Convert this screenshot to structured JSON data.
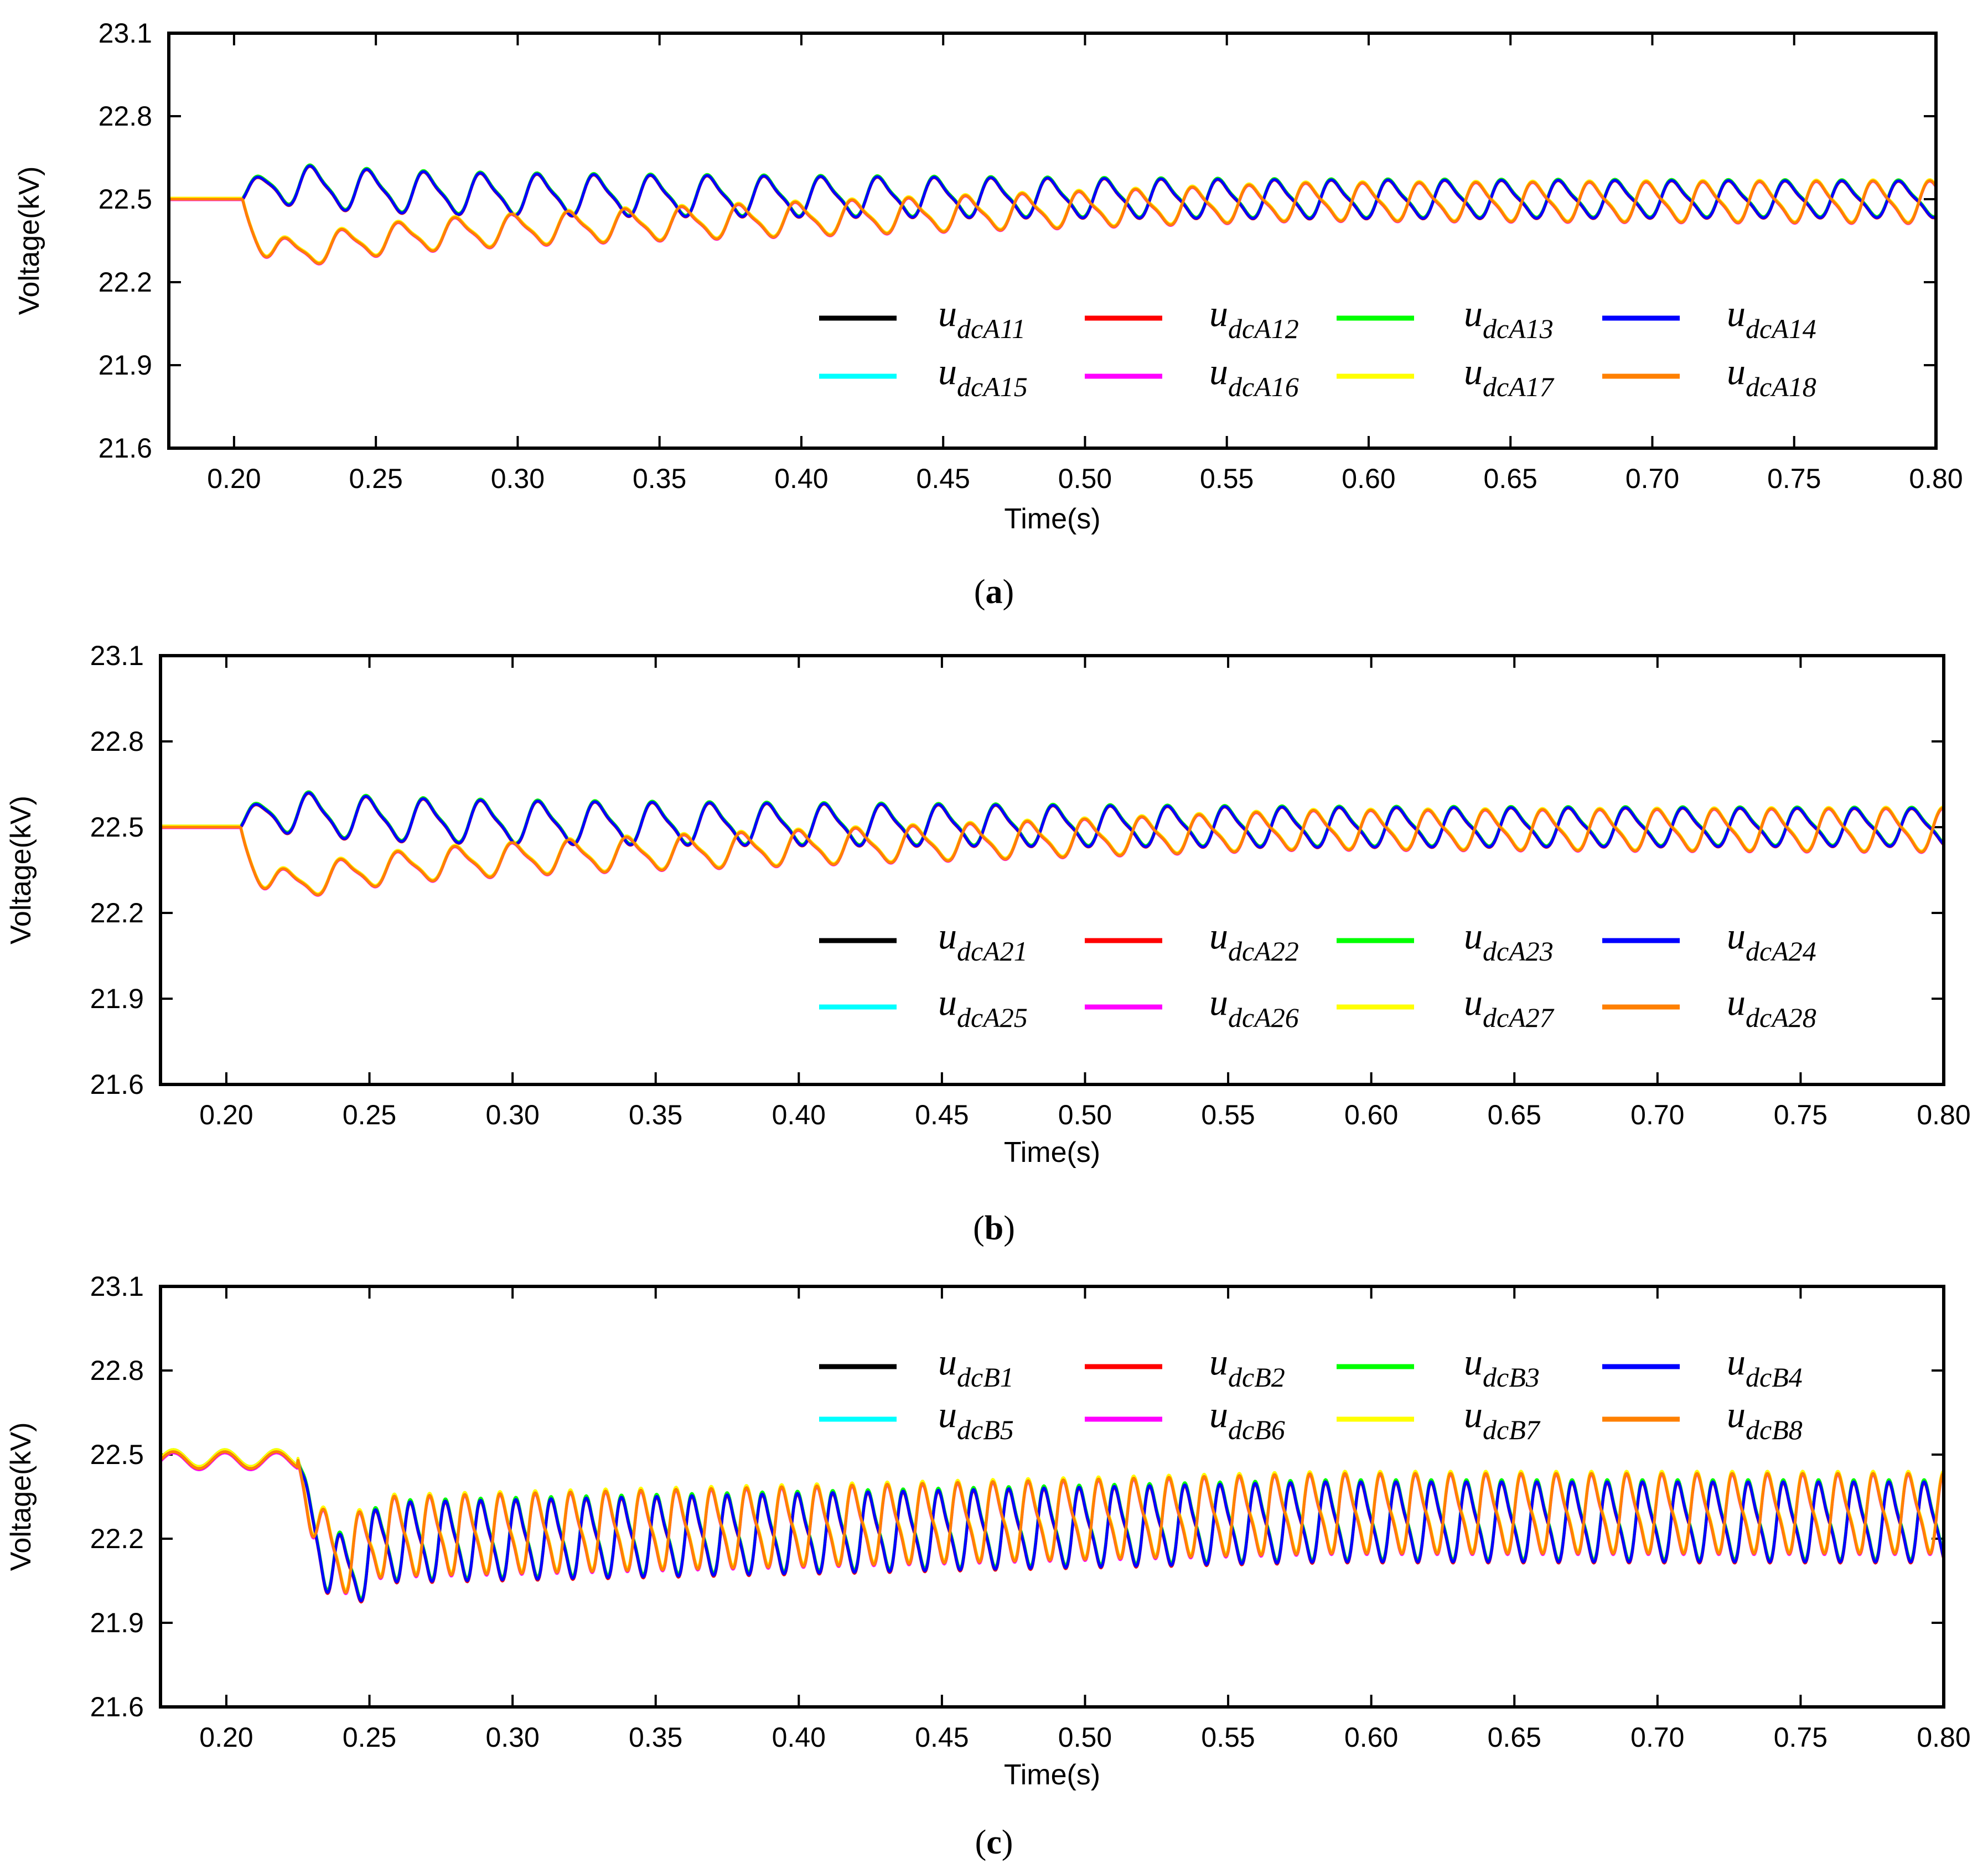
{
  "chart_data": [
    {
      "type": "line",
      "panel_label": "a",
      "xlabel": "Time(s)",
      "ylabel": "Voltage(kV)",
      "xlim": [
        0.177,
        0.8
      ],
      "ylim": [
        21.6,
        23.1
      ],
      "xticks": [
        "0.20",
        "0.25",
        "0.30",
        "0.35",
        "0.40",
        "0.45",
        "0.50",
        "0.55",
        "0.60",
        "0.65",
        "0.70",
        "0.75",
        "0.80"
      ],
      "yticks": [
        "21.6",
        "21.9",
        "22.2",
        "22.5",
        "22.8",
        "23.1"
      ],
      "legend_location": "lower-right",
      "series": [
        {
          "name": "u",
          "sub": "dcA11",
          "color": "#000000",
          "group": "blue"
        },
        {
          "name": "u",
          "sub": "dcA12",
          "color": "#ff0000",
          "group": "blue"
        },
        {
          "name": "u",
          "sub": "dcA13",
          "color": "#00ff00",
          "group": "blue"
        },
        {
          "name": "u",
          "sub": "dcA14",
          "color": "#0000ff",
          "group": "blue"
        },
        {
          "name": "u",
          "sub": "dcA15",
          "color": "#00ffff",
          "group": "orange"
        },
        {
          "name": "u",
          "sub": "dcA16",
          "color": "#ff00ff",
          "group": "orange"
        },
        {
          "name": "u",
          "sub": "dcA17",
          "color": "#ffff00",
          "group": "orange"
        },
        {
          "name": "u",
          "sub": "dcA18",
          "color": "#ff8000",
          "group": "orange"
        }
      ],
      "signal": {
        "steady_start": 22.5,
        "fault_time": 0.203,
        "period": 0.02,
        "blue": {
          "mean_start": 22.52,
          "amp_start": 0.07,
          "mean_end": 22.5,
          "amp_end": 0.06,
          "transient": 0.06
        },
        "orange": {
          "mean_start": 22.36,
          "amp_start": 0.05,
          "mean_end": 22.49,
          "amp_end": 0.07,
          "transient": -0.12
        }
      }
    },
    {
      "type": "line",
      "panel_label": "b",
      "xlabel": "Time(s)",
      "ylabel": "Voltage(kV)",
      "xlim": [
        0.177,
        0.8
      ],
      "ylim": [
        21.6,
        23.1
      ],
      "xticks": [
        "0.20",
        "0.25",
        "0.30",
        "0.35",
        "0.40",
        "0.45",
        "0.50",
        "0.55",
        "0.60",
        "0.65",
        "0.70",
        "0.75",
        "0.80"
      ],
      "yticks": [
        "21.6",
        "21.9",
        "22.2",
        "22.5",
        "22.8",
        "23.1"
      ],
      "legend_location": "lower-right",
      "series": [
        {
          "name": "u",
          "sub": "dcA21",
          "color": "#000000",
          "group": "blue"
        },
        {
          "name": "u",
          "sub": "dcA22",
          "color": "#ff0000",
          "group": "blue"
        },
        {
          "name": "u",
          "sub": "dcA23",
          "color": "#00ff00",
          "group": "blue"
        },
        {
          "name": "u",
          "sub": "dcA24",
          "color": "#0000ff",
          "group": "blue"
        },
        {
          "name": "u",
          "sub": "dcA25",
          "color": "#00ffff",
          "group": "orange"
        },
        {
          "name": "u",
          "sub": "dcA26",
          "color": "#ff00ff",
          "group": "orange"
        },
        {
          "name": "u",
          "sub": "dcA27",
          "color": "#ffff00",
          "group": "orange"
        },
        {
          "name": "u",
          "sub": "dcA28",
          "color": "#ff8000",
          "group": "orange"
        }
      ],
      "signal": {
        "steady_start": 22.5,
        "fault_time": 0.205,
        "period": 0.02,
        "blue": {
          "mean_start": 22.52,
          "amp_start": 0.07,
          "mean_end": 22.5,
          "amp_end": 0.06,
          "transient": 0.06
        },
        "orange": {
          "mean_start": 22.36,
          "amp_start": 0.05,
          "mean_end": 22.49,
          "amp_end": 0.07,
          "transient": -0.13
        }
      }
    },
    {
      "type": "line",
      "panel_label": "c",
      "xlabel": "Time(s)",
      "ylabel": "Voltage(kV)",
      "xlim": [
        0.177,
        0.8
      ],
      "ylim": [
        21.6,
        23.1
      ],
      "xticks": [
        "0.20",
        "0.25",
        "0.30",
        "0.35",
        "0.40",
        "0.45",
        "0.50",
        "0.55",
        "0.60",
        "0.65",
        "0.70",
        "0.75",
        "0.80"
      ],
      "yticks": [
        "21.6",
        "21.9",
        "22.2",
        "22.5",
        "22.8",
        "23.1"
      ],
      "legend_location": "upper-right",
      "series": [
        {
          "name": "u",
          "sub": "dcB1",
          "color": "#000000",
          "group": "blue"
        },
        {
          "name": "u",
          "sub": "dcB2",
          "color": "#ff0000",
          "group": "blue"
        },
        {
          "name": "u",
          "sub": "dcB3",
          "color": "#00ff00",
          "group": "blue"
        },
        {
          "name": "u",
          "sub": "dcB4",
          "color": "#0000ff",
          "group": "blue"
        },
        {
          "name": "u",
          "sub": "dcB5",
          "color": "#00ffff",
          "group": "orange"
        },
        {
          "name": "u",
          "sub": "dcB6",
          "color": "#ff00ff",
          "group": "orange"
        },
        {
          "name": "u",
          "sub": "dcB7",
          "color": "#ffff00",
          "group": "orange"
        },
        {
          "name": "u",
          "sub": "dcB8",
          "color": "#ff8000",
          "group": "orange"
        }
      ],
      "signal": {
        "steady_start": 22.48,
        "fault_time": 0.225,
        "period": 0.0123,
        "blue": {
          "mean_start": 22.18,
          "amp_start": 0.13,
          "mean_end": 22.26,
          "amp_end": 0.13,
          "transient": -0.22
        },
        "orange": {
          "mean_start": 22.2,
          "amp_start": 0.13,
          "mean_end": 22.29,
          "amp_end": 0.13,
          "transient": -0.15
        }
      }
    }
  ]
}
